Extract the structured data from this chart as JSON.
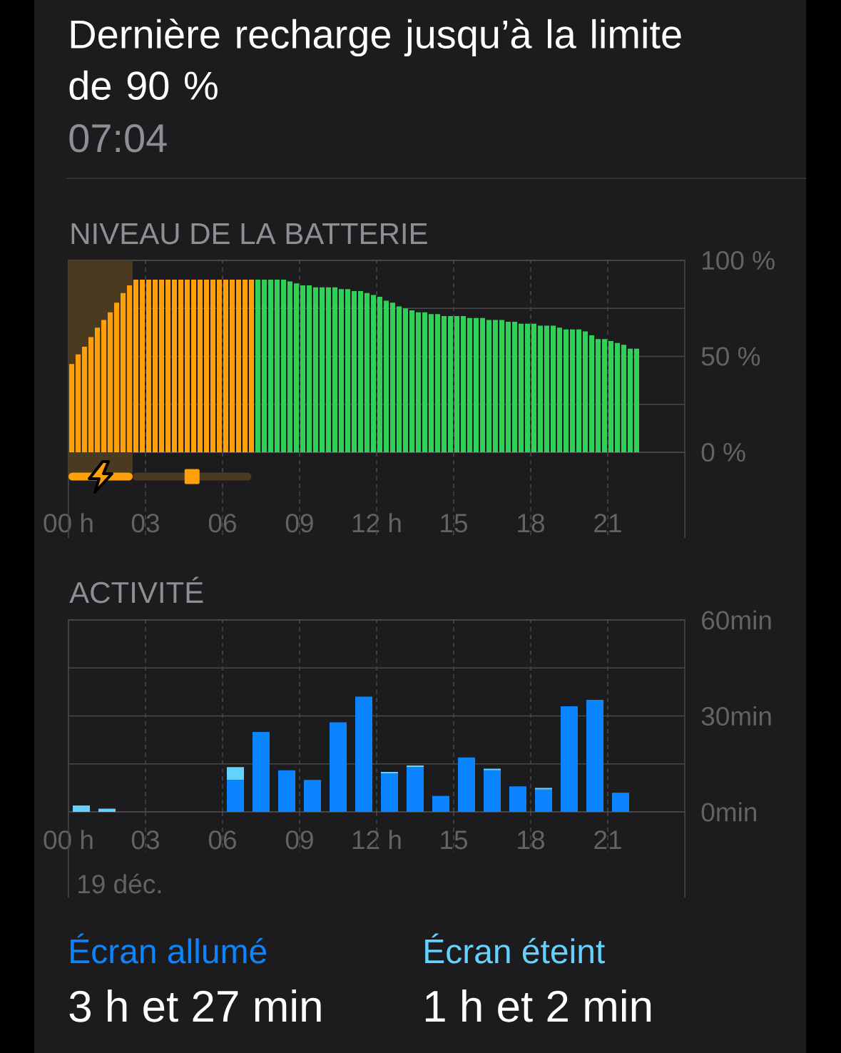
{
  "chart_data": [
    {
      "type": "other",
      "title": "Dernière recharge jusqu’à la limite de 90 %",
      "subtitle": "07:04"
    },
    {
      "type": "bar",
      "title": "NIVEAU DE LA BATTERIE",
      "x": [
        0.125,
        0.375,
        0.625,
        0.875,
        1.125,
        1.375,
        1.625,
        1.875,
        2.125,
        2.375,
        2.625,
        2.875,
        3.125,
        3.375,
        3.625,
        3.875,
        4.125,
        4.375,
        4.625,
        4.875,
        5.125,
        5.375,
        5.625,
        5.875,
        6.125,
        6.375,
        6.625,
        6.875,
        7.125,
        7.375,
        7.625,
        7.875,
        8.125,
        8.375,
        8.625,
        8.875,
        9.125,
        9.375,
        9.625,
        9.875,
        10.125,
        10.375,
        10.625,
        10.875,
        11.125,
        11.375,
        11.625,
        11.875,
        12.125,
        12.375,
        12.625,
        12.875,
        13.125,
        13.375,
        13.625,
        13.875,
        14.125,
        14.375,
        14.625,
        14.875,
        15.125,
        15.375,
        15.625,
        15.875,
        16.125,
        16.375,
        16.625,
        16.875,
        17.125,
        17.375,
        17.625,
        17.875,
        18.125,
        18.375,
        18.625,
        18.875,
        19.125,
        19.375,
        19.625,
        19.875,
        20.125,
        20.375,
        20.625,
        20.875,
        21.125,
        21.375,
        21.625,
        21.875,
        22.125
      ],
      "values": [
        46,
        51,
        55,
        60,
        65,
        69,
        73,
        78,
        83,
        87,
        90,
        90,
        90,
        90,
        90,
        90,
        90,
        90,
        90,
        90,
        90,
        90,
        90,
        90,
        90,
        90,
        90,
        90,
        90,
        90,
        90,
        90,
        90,
        90,
        89,
        88,
        87,
        87,
        86,
        86,
        86,
        86,
        85,
        85,
        84,
        84,
        83,
        82,
        81,
        79,
        78,
        76,
        75,
        74,
        73,
        73,
        72,
        72,
        71,
        71,
        71,
        71,
        70,
        70,
        70,
        69,
        69,
        69,
        68,
        68,
        67,
        67,
        67,
        66,
        66,
        66,
        65,
        64,
        64,
        64,
        63,
        61,
        59,
        59,
        58,
        57,
        56,
        54,
        54
      ],
      "colors": [
        "#ff9f0a",
        "#ff9f0a",
        "#ff9f0a",
        "#ff9f0a",
        "#ff9f0a",
        "#ff9f0a",
        "#ff9f0a",
        "#ff9f0a",
        "#ff9f0a",
        "#ff9f0a",
        "#ff9f0a",
        "#ff9f0a",
        "#ff9f0a",
        "#ff9f0a",
        "#ff9f0a",
        "#ff9f0a",
        "#ff9f0a",
        "#ff9f0a",
        "#ff9f0a",
        "#ff9f0a",
        "#ff9f0a",
        "#ff9f0a",
        "#ff9f0a",
        "#ff9f0a",
        "#ff9f0a",
        "#ff9f0a",
        "#ff9f0a",
        "#ff9f0a",
        "#ff9f0a",
        "#30d158",
        "#30d158",
        "#30d158",
        "#30d158",
        "#30d158",
        "#30d158",
        "#30d158",
        "#30d158",
        "#30d158",
        "#30d158",
        "#30d158",
        "#30d158",
        "#30d158",
        "#30d158",
        "#30d158",
        "#30d158",
        "#30d158",
        "#30d158",
        "#30d158",
        "#30d158",
        "#30d158",
        "#30d158",
        "#30d158",
        "#30d158",
        "#30d158",
        "#30d158",
        "#30d158",
        "#30d158",
        "#30d158",
        "#30d158",
        "#30d158",
        "#30d158",
        "#30d158",
        "#30d158",
        "#30d158",
        "#30d158",
        "#30d158",
        "#30d158",
        "#30d158",
        "#30d158",
        "#30d158",
        "#30d158",
        "#30d158",
        "#30d158",
        "#30d158",
        "#30d158",
        "#30d158",
        "#30d158",
        "#30d158",
        "#30d158",
        "#30d158",
        "#30d158",
        "#30d158",
        "#30d158",
        "#30d158",
        "#30d158",
        "#30d158",
        "#30d158",
        "#30d158",
        "#30d158"
      ],
      "xlim": [
        0,
        24
      ],
      "xticks": [
        {
          "value": 0,
          "label": "00 h"
        },
        {
          "value": 3,
          "label": "03"
        },
        {
          "value": 6,
          "label": "06"
        },
        {
          "value": 9,
          "label": "09"
        },
        {
          "value": 12,
          "label": "12 h"
        },
        {
          "value": 15,
          "label": "15"
        },
        {
          "value": 18,
          "label": "18"
        },
        {
          "value": 21,
          "label": "21"
        }
      ],
      "ylim": [
        0,
        100
      ],
      "yticks": [
        {
          "value": 0,
          "label": "0 %"
        },
        {
          "value": 25,
          "label": null
        },
        {
          "value": 50,
          "label": "50 %"
        },
        {
          "value": 75,
          "label": null
        },
        {
          "value": 100,
          "label": "100 %"
        }
      ],
      "grid": true,
      "bands": [
        {
          "axis": "x",
          "from": 0,
          "to": 2.5,
          "color": "#4a3a1f"
        }
      ]
    },
    {
      "type": "bar",
      "title": "ACTIVITÉ",
      "xlabel": "19 déc.",
      "x": [
        0.5,
        1.5,
        2.5,
        3.5,
        4.5,
        5.5,
        6.5,
        7.5,
        8.5,
        9.5,
        10.5,
        11.5,
        12.5,
        13.5,
        14.5,
        15.5,
        16.5,
        17.5,
        18.5,
        19.5,
        20.5,
        21.5,
        22.5,
        23.5
      ],
      "series": [
        {
          "name": "Écran allumé",
          "color": "#0a84ff",
          "values": [
            0,
            0,
            0,
            0,
            0,
            0,
            10,
            25,
            13,
            10,
            28,
            36,
            12,
            14,
            5,
            17,
            13,
            8,
            7,
            33,
            35,
            6,
            0,
            0
          ]
        },
        {
          "name": "Écran éteint",
          "color": "#64d2ff",
          "values": [
            2,
            1,
            0,
            0,
            0,
            0,
            4,
            0,
            0,
            0,
            0,
            0,
            0.5,
            0.5,
            0,
            0,
            0.5,
            0,
            0.5,
            0,
            0,
            0,
            0,
            0
          ]
        }
      ],
      "stacked": true,
      "xlim": [
        0,
        24
      ],
      "xticks": [
        {
          "value": 0,
          "label": "00 h"
        },
        {
          "value": 3,
          "label": "03"
        },
        {
          "value": 6,
          "label": "06"
        },
        {
          "value": 9,
          "label": "09"
        },
        {
          "value": 12,
          "label": "12 h"
        },
        {
          "value": 15,
          "label": "15"
        },
        {
          "value": 18,
          "label": "18"
        },
        {
          "value": 21,
          "label": "21"
        }
      ],
      "ylim": [
        0,
        60
      ],
      "yticks": [
        {
          "value": 0,
          "label": "0min"
        },
        {
          "value": 15,
          "label": null
        },
        {
          "value": 30,
          "label": "30min"
        },
        {
          "value": 45,
          "label": null
        },
        {
          "value": 60,
          "label": "60min"
        }
      ],
      "grid": true,
      "annotations": [
        "3 h et 27 min",
        "1 h et 2 min"
      ]
    }
  ]
}
